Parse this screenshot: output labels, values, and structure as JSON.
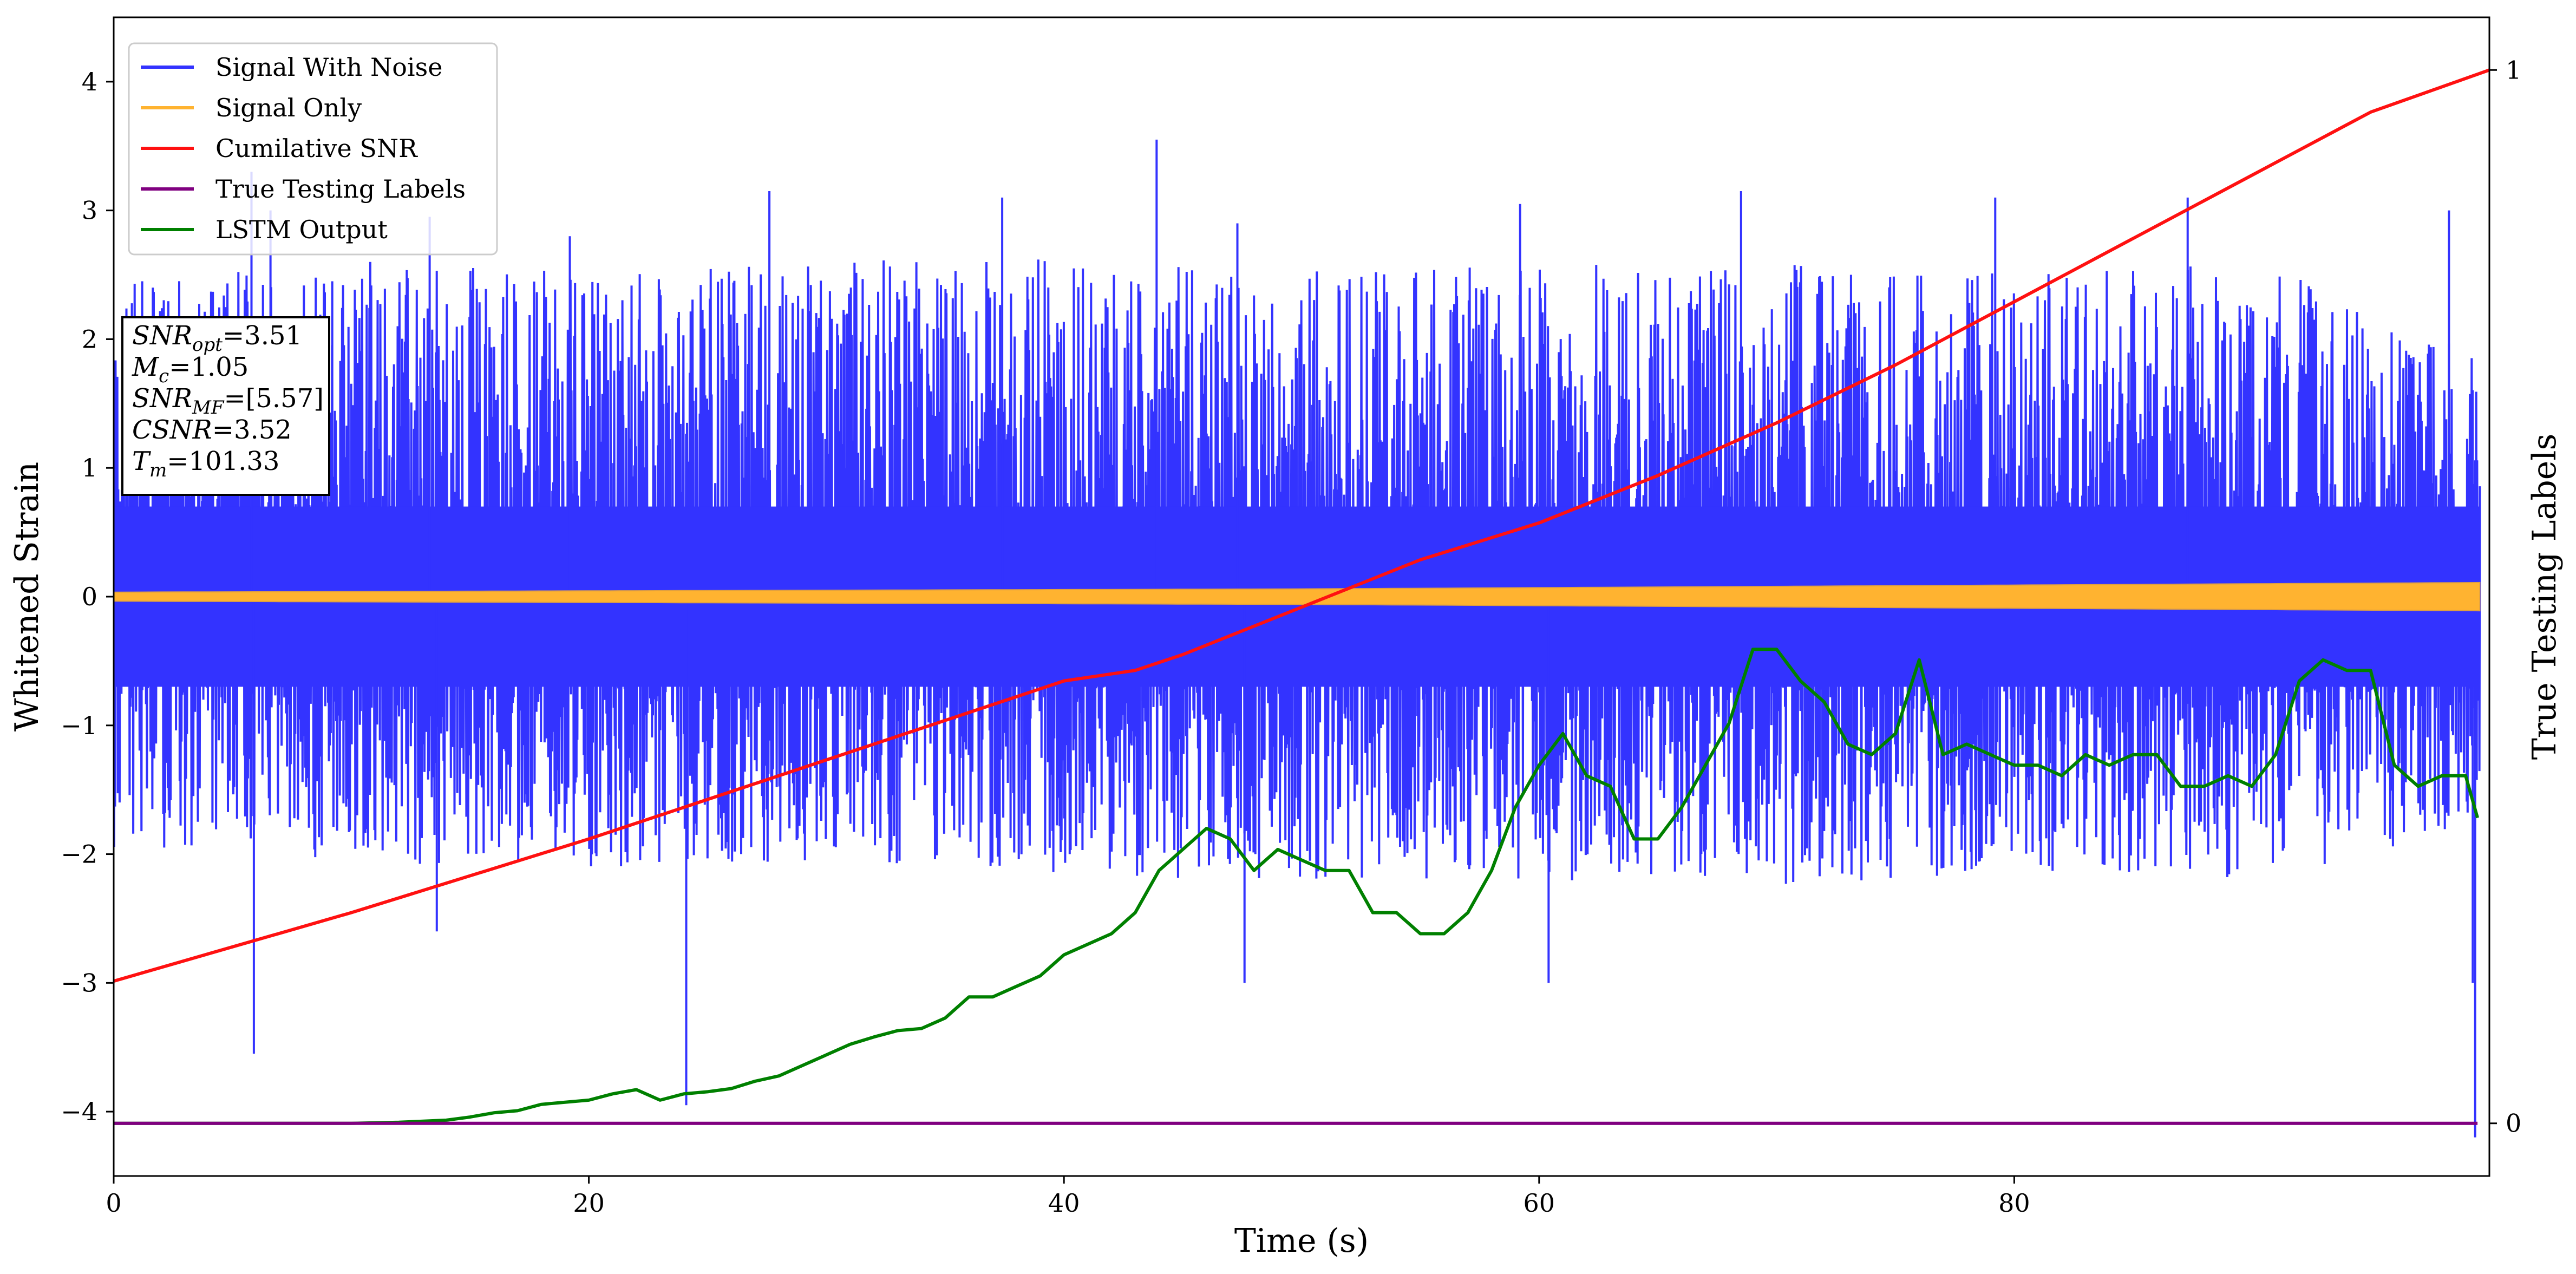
{
  "chart_data": {
    "type": "line",
    "xlabel": "Time (s)",
    "ylabel_left": "Whitened Strain",
    "ylabel_right": "True Testing Labels",
    "xlim": [
      0,
      100
    ],
    "ylim_left": [
      -4.5,
      4.5
    ],
    "ylim_right": [
      -0.05,
      1.05
    ],
    "x_ticks": [
      0,
      20,
      40,
      60,
      80
    ],
    "y_ticks_left": [
      -4,
      -3,
      -2,
      -1,
      0,
      1,
      2,
      3,
      4
    ],
    "y_ticks_right": [
      0,
      1
    ],
    "grid": false,
    "legend": {
      "location": "top-left",
      "entries": [
        {
          "label": "Signal With Noise",
          "color": "#3333ff"
        },
        {
          "label": "Signal Only",
          "color": "#ffb330"
        },
        {
          "label": "Cumilative SNR",
          "color": "#ff1111"
        },
        {
          "label": "True Testing Labels",
          "color": "#800080"
        },
        {
          "label": "LSTM Output",
          "color": "#008000"
        }
      ]
    },
    "annotation": {
      "lines": [
        {
          "base": "SNR",
          "sub": "opt",
          "value": "=3.51"
        },
        {
          "base": "M",
          "sub": "c",
          "value": "=1.05"
        },
        {
          "base": "SNR",
          "sub": "MF",
          "value": "=[5.57]"
        },
        {
          "base": "CSNR",
          "sub": "",
          "value": "=3.52"
        },
        {
          "base": "T",
          "sub": "m",
          "value": "=101.33"
        }
      ]
    },
    "series": [
      {
        "name": "Signal With Noise",
        "axis": "left",
        "color": "#3333ff",
        "description_values": "dense noise spanning roughly -2 to +2.6 with spikes",
        "envelope_x": [
          0,
          10,
          20,
          30,
          40,
          50,
          60,
          70,
          80,
          90,
          100
        ],
        "envelope_upper": [
          2.4,
          2.6,
          2.5,
          2.6,
          2.6,
          2.5,
          2.6,
          2.6,
          2.5,
          2.6,
          1.8
        ],
        "envelope_lower": [
          -1.9,
          -2.0,
          -2.1,
          -2.0,
          -2.1,
          -2.2,
          -2.2,
          -2.2,
          -2.1,
          -2.2,
          -1.7
        ],
        "spikes": [
          {
            "x": 1.2,
            "y": 2.45
          },
          {
            "x": 5.8,
            "y": 3.3
          },
          {
            "x": 5.9,
            "y": -3.55
          },
          {
            "x": 6.6,
            "y": 3.0
          },
          {
            "x": 9.2,
            "y": 2.45
          },
          {
            "x": 10.8,
            "y": 2.6
          },
          {
            "x": 13.3,
            "y": 2.95
          },
          {
            "x": 13.6,
            "y": -2.6
          },
          {
            "x": 19.2,
            "y": 2.8
          },
          {
            "x": 24.1,
            "y": -3.95
          },
          {
            "x": 27.6,
            "y": 3.15
          },
          {
            "x": 37.4,
            "y": 3.1
          },
          {
            "x": 43.9,
            "y": 3.55
          },
          {
            "x": 47.3,
            "y": 2.9
          },
          {
            "x": 47.6,
            "y": -3.0
          },
          {
            "x": 59.2,
            "y": 3.05
          },
          {
            "x": 60.4,
            "y": -3.0
          },
          {
            "x": 68.5,
            "y": 3.15
          },
          {
            "x": 79.2,
            "y": 3.1
          },
          {
            "x": 87.3,
            "y": 3.1
          },
          {
            "x": 98.3,
            "y": 3.0
          },
          {
            "x": 99.3,
            "y": -3.0
          },
          {
            "x": 99.4,
            "y": -4.2
          }
        ]
      },
      {
        "name": "Signal Only",
        "axis": "left",
        "color": "#ffb330",
        "x": [
          0,
          50,
          100
        ],
        "amplitude": [
          0.035,
          0.06,
          0.11
        ]
      },
      {
        "name": "Cumilative SNR",
        "axis": "right",
        "color": "#ff1111",
        "x": [
          0,
          10,
          20,
          30,
          40,
          43,
          45,
          50,
          55,
          60,
          65,
          70,
          75,
          80,
          85,
          90,
          95,
          100
        ],
        "y": [
          0.135,
          0.2,
          0.27,
          0.345,
          0.42,
          0.43,
          0.445,
          0.49,
          0.535,
          0.57,
          0.615,
          0.665,
          0.72,
          0.78,
          0.84,
          0.9,
          0.96,
          1.0
        ]
      },
      {
        "name": "True Testing Labels",
        "axis": "right",
        "color": "#800080",
        "x": [
          0,
          99.5
        ],
        "y": [
          0,
          0
        ]
      },
      {
        "name": "LSTM Output",
        "axis": "right",
        "color": "#008000",
        "x": [
          0,
          10,
          12,
          14,
          15,
          16,
          17,
          18,
          19,
          20,
          21,
          22,
          23,
          24,
          25,
          26,
          27,
          28,
          29,
          30,
          31,
          32,
          33,
          34,
          35,
          36,
          37,
          38,
          39,
          40,
          41,
          42,
          43,
          44,
          45,
          46,
          47,
          48,
          49,
          50,
          51,
          52,
          53,
          54,
          55,
          56,
          57,
          58,
          59,
          60,
          61,
          62,
          63,
          64,
          65,
          66,
          67,
          68,
          69,
          70,
          71,
          72,
          73,
          74,
          75,
          76,
          77,
          78,
          79,
          80,
          81,
          82,
          83,
          84,
          85,
          86,
          87,
          88,
          89,
          90,
          91,
          92,
          93,
          94,
          95,
          96,
          97,
          98,
          99,
          99.5
        ],
        "y": [
          0.0,
          0.0,
          0.001,
          0.003,
          0.006,
          0.01,
          0.012,
          0.018,
          0.02,
          0.022,
          0.028,
          0.032,
          0.022,
          0.028,
          0.03,
          0.033,
          0.04,
          0.045,
          0.055,
          0.065,
          0.075,
          0.082,
          0.088,
          0.09,
          0.1,
          0.12,
          0.12,
          0.13,
          0.14,
          0.16,
          0.17,
          0.18,
          0.2,
          0.24,
          0.26,
          0.28,
          0.27,
          0.24,
          0.26,
          0.25,
          0.24,
          0.24,
          0.2,
          0.2,
          0.18,
          0.18,
          0.2,
          0.24,
          0.3,
          0.34,
          0.37,
          0.33,
          0.32,
          0.27,
          0.27,
          0.3,
          0.34,
          0.38,
          0.45,
          0.45,
          0.42,
          0.4,
          0.36,
          0.35,
          0.37,
          0.44,
          0.35,
          0.36,
          0.35,
          0.34,
          0.34,
          0.33,
          0.35,
          0.34,
          0.35,
          0.35,
          0.32,
          0.32,
          0.33,
          0.32,
          0.35,
          0.42,
          0.44,
          0.43,
          0.43,
          0.34,
          0.32,
          0.33,
          0.33,
          0.29
        ]
      }
    ]
  }
}
